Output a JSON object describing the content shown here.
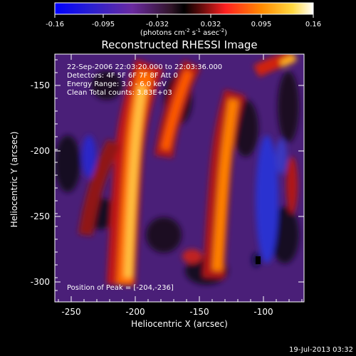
{
  "colorbar": {
    "ticks": [
      "-0.16",
      "-0.095",
      "-0.032",
      "0.032",
      "0.095",
      "0.16"
    ],
    "units_label": "(photons cm",
    "units_parts": [
      "(photons cm",
      "-2",
      " s",
      "-1",
      " asec",
      "-2",
      ")"
    ]
  },
  "plot": {
    "title": "Reconstructed RHESSI Image",
    "xlabel": "Heliocentric X (arcsec)",
    "ylabel": "Heliocentric Y (arcsec)",
    "x_ticks": [
      "-250",
      "-200",
      "-150",
      "-100"
    ],
    "y_ticks": [
      "-150",
      "-200",
      "-250",
      "-300"
    ]
  },
  "info": {
    "line1": "22-Sep-2006 22:03:20.000 to 22:03:36.000",
    "line2": "Detectors: 4F 5F 6F 7F 8F  Att 0",
    "line3": "Energy Range: 3.0 - 6.0 keV",
    "line4": "Clean     Total counts: 3.83E+03",
    "peak": "Position of Peak = [-204,-236]"
  },
  "footer": {
    "timestamp": "19-Jul-2013 03:32"
  },
  "colors": {
    "background": "#000000",
    "text": "#ffffff",
    "colorbar_stops": [
      "#0000ff",
      "#3020c8",
      "#6a2aa0",
      "#3a1a3a",
      "#ff2020",
      "#ff8a00",
      "#ffd840",
      "#ffffff"
    ]
  }
}
